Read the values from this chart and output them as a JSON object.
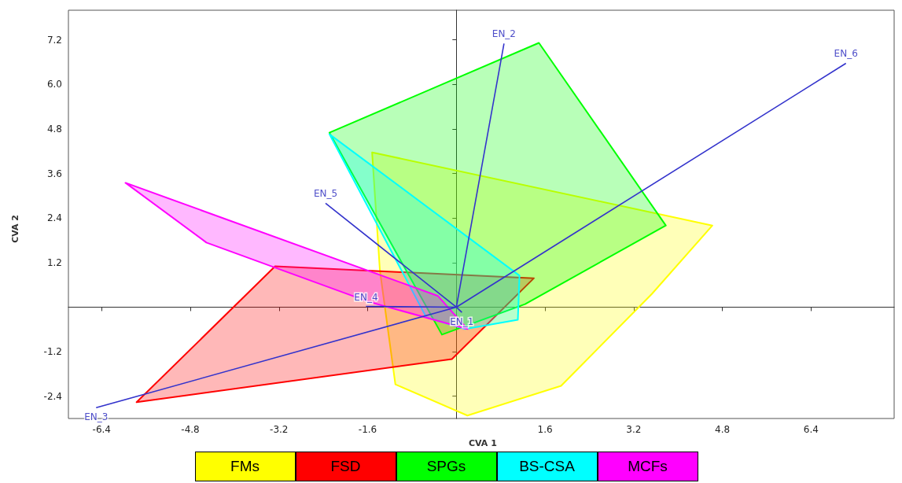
{
  "chart_data": {
    "type": "area",
    "xlabel": "CVA 1",
    "ylabel": "CVA 2",
    "xlim": [
      -7,
      7.9
    ],
    "ylim": [
      -3,
      8
    ],
    "xticks": [
      -6.4,
      -4.8,
      -3.2,
      -1.6,
      {
        "value": 0,
        "label": null
      },
      1.6,
      3.2,
      4.8,
      6.4
    ],
    "yticks": [
      -2.4,
      -1.2,
      {
        "value": 0,
        "label": null
      },
      1.2,
      2.4,
      3.6,
      4.8,
      {
        "value": 6,
        "label": "6.0"
      },
      7.2
    ],
    "legend": "bottom",
    "series": [
      {
        "name": "FMs",
        "color": "#ffff00",
        "x": [
          -1.52,
          4.62,
          3.53,
          1.89,
          0.2,
          -1.1,
          -1.38
        ],
        "values": [
          4.17,
          2.2,
          0.36,
          -2.12,
          -2.92,
          -2.08,
          1.0
        ]
      },
      {
        "name": "FSD",
        "color": "#ff0000",
        "x": [
          -5.77,
          -3.27,
          1.4,
          -0.08
        ],
        "values": [
          -2.56,
          1.1,
          0.78,
          -1.4
        ]
      },
      {
        "name": "SPGs",
        "color": "#00ff00",
        "x": [
          -2.29,
          1.49,
          3.78,
          1.24,
          -0.26
        ],
        "values": [
          4.7,
          7.12,
          2.2,
          0.08,
          -0.74
        ]
      },
      {
        "name": "BS-CSA",
        "color": "#00ffff",
        "x": [
          -2.29,
          1.14,
          1.11,
          0.16,
          -0.54
        ],
        "values": [
          4.66,
          0.85,
          -0.34,
          -0.59,
          -0.28
        ]
      },
      {
        "name": "MCFs",
        "color": "#ff00ff",
        "x": [
          -5.97,
          -0.33,
          0.2,
          -1.59,
          -4.51
        ],
        "values": [
          3.35,
          0.3,
          -0.59,
          0.15,
          1.74
        ]
      },
      {
        "type": "line",
        "color": "#3333cc",
        "x": [
          0,
          0.1,
          null,
          0,
          0.86,
          null,
          0,
          -6.5,
          null,
          0,
          -1.63,
          null,
          0,
          -2.36,
          null,
          0,
          7.03
        ],
        "values": [
          0,
          -0.14,
          null,
          0,
          7.1,
          null,
          0,
          -2.71,
          null,
          0,
          0.02,
          null,
          0,
          2.8,
          null,
          0,
          6.57
        ]
      }
    ],
    "annotations": [
      {
        "text": "EN_1",
        "x": 0.1,
        "y": -0.14
      },
      {
        "text": "EN_2",
        "x": 0.86,
        "y": 7.1
      },
      {
        "text": "EN_3",
        "x": -6.5,
        "y": -2.71
      },
      {
        "text": "EN_4",
        "x": -1.63,
        "y": 0.02
      },
      {
        "text": "EN_5",
        "x": -2.36,
        "y": 2.8
      },
      {
        "text": "EN_6",
        "x": 7.03,
        "y": 6.57
      }
    ]
  }
}
